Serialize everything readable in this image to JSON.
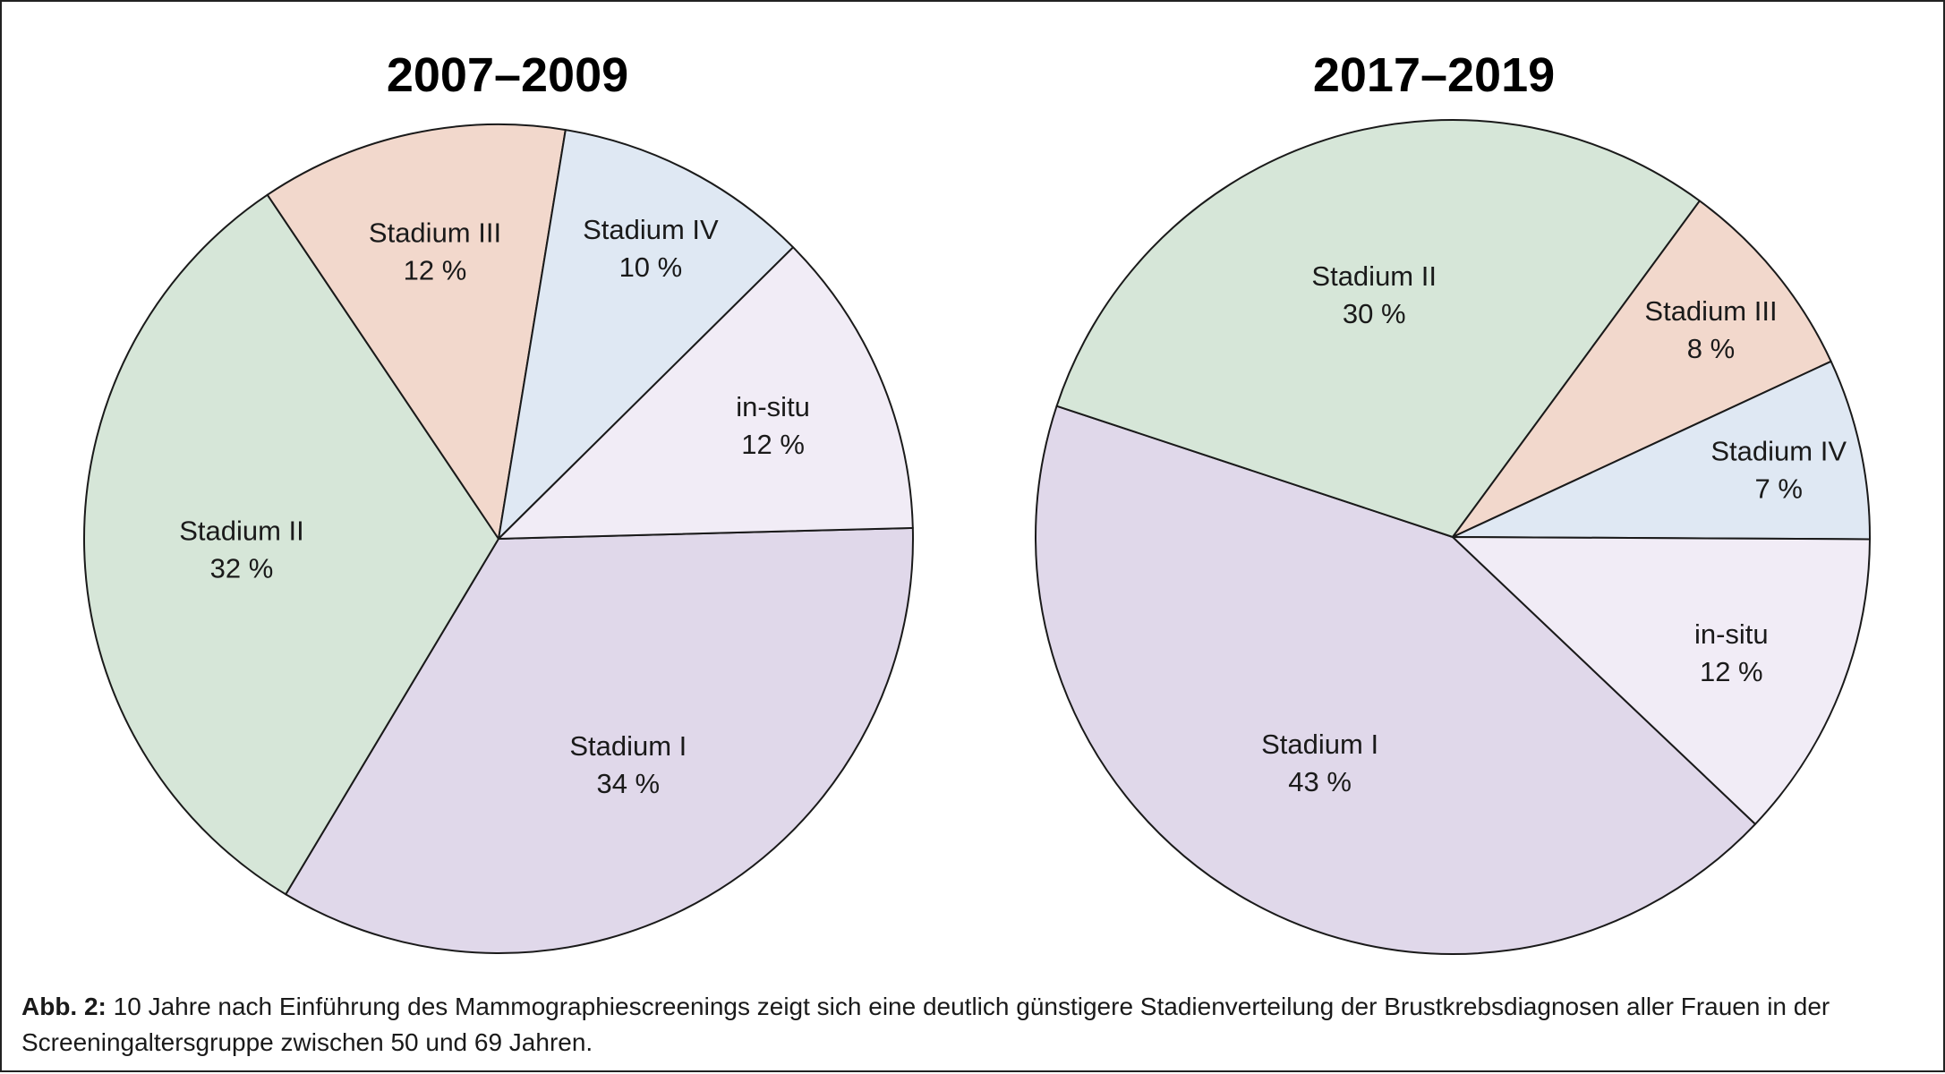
{
  "chart_data": [
    {
      "type": "pie",
      "title": "2007–2009",
      "slices": [
        {
          "label": "Stadium I",
          "value": 34,
          "value_label": "34 %",
          "color": "#e0d8ea"
        },
        {
          "label": "Stadium II",
          "value": 32,
          "value_label": "32 %",
          "color": "#d6e6d8"
        },
        {
          "label": "Stadium III",
          "value": 12,
          "value_label": "12 %",
          "color": "#f2d8cc"
        },
        {
          "label": "Stadium IV",
          "value": 10,
          "value_label": "10 %",
          "color": "#dfe8f3"
        },
        {
          "label": "in-situ",
          "value": 12,
          "value_label": "12 %",
          "color": "#f1ecf6"
        }
      ]
    },
    {
      "type": "pie",
      "title": "2017–2019",
      "slices": [
        {
          "label": "Stadium I",
          "value": 43,
          "value_label": "43 %",
          "color": "#e0d8ea"
        },
        {
          "label": "Stadium II",
          "value": 30,
          "value_label": "30 %",
          "color": "#d6e6d8"
        },
        {
          "label": "Stadium III",
          "value": 8,
          "value_label": "8 %",
          "color": "#f2d8cc"
        },
        {
          "label": "Stadium IV",
          "value": 7,
          "value_label": "7 %",
          "color": "#dfe8f3"
        },
        {
          "label": "in-situ",
          "value": 12,
          "value_label": "12 %",
          "color": "#f1ecf6"
        }
      ]
    }
  ],
  "caption": {
    "label": "Abb. 2:",
    "text": " 10 Jahre nach Einführung des Mammographiescreenings zeigt sich eine deutlich günstigere Stadienverteilung der Brustkrebsdiagnosen aller Frauen in der Screeningaltersgruppe zwischen 50 und 69 Jahren."
  }
}
